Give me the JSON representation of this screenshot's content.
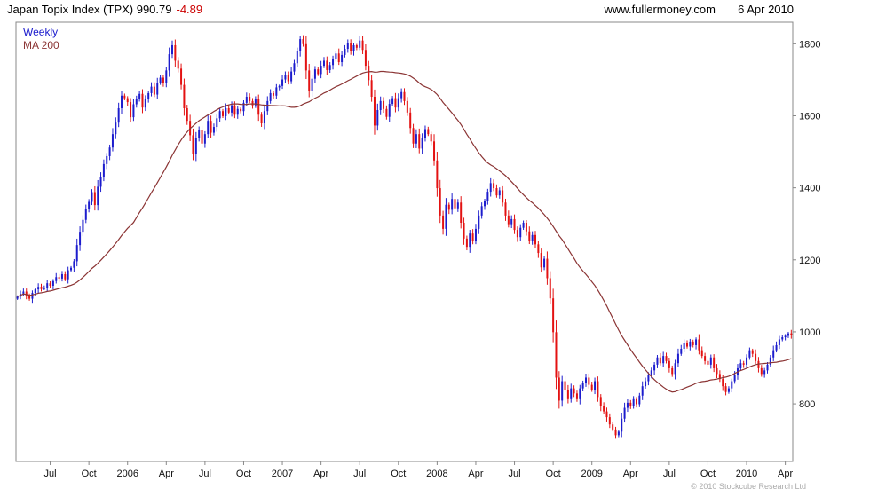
{
  "header": {
    "title": "Japan Topix Index (TPX) 990.79",
    "change": "-4.89",
    "change_color": "#cc0000",
    "website": "www.fullermoney.com",
    "date": "6 Apr 2010"
  },
  "legend": {
    "weekly": "Weekly",
    "ma": "MA 200"
  },
  "footer": {
    "copyright": "© 2010 Stockcube Research Ltd"
  },
  "chart_data": {
    "type": "candlestick",
    "title": "Japan Topix Index (TPX)",
    "interval": "Weekly",
    "overlay": "MA 200",
    "last_close": 990.79,
    "change": -4.89,
    "ylim": [
      640,
      1860
    ],
    "y_ticks": [
      800,
      1000,
      1200,
      1400,
      1600,
      1800
    ],
    "x_ticks": [
      {
        "label": "Jul",
        "index": 11
      },
      {
        "label": "Oct",
        "index": 24
      },
      {
        "label": "2006",
        "index": 37
      },
      {
        "label": "Apr",
        "index": 50
      },
      {
        "label": "Jul",
        "index": 63
      },
      {
        "label": "Oct",
        "index": 76
      },
      {
        "label": "2007",
        "index": 89
      },
      {
        "label": "Apr",
        "index": 102
      },
      {
        "label": "Jul",
        "index": 115
      },
      {
        "label": "Oct",
        "index": 128
      },
      {
        "label": "2008",
        "index": 141
      },
      {
        "label": "Apr",
        "index": 154
      },
      {
        "label": "Jul",
        "index": 167
      },
      {
        "label": "Oct",
        "index": 180
      },
      {
        "label": "2009",
        "index": 193
      },
      {
        "label": "Apr",
        "index": 206
      },
      {
        "label": "Jul",
        "index": 219
      },
      {
        "label": "Oct",
        "index": 232
      },
      {
        "label": "2010",
        "index": 245
      },
      {
        "label": "Apr",
        "index": 258
      }
    ],
    "ma_window": 40,
    "colors": {
      "up": "#1c1ccd",
      "down": "#e31212",
      "ma": "#8b3434",
      "frame": "#888888",
      "text": "#111111"
    },
    "weekly_closes": [
      1098,
      1105,
      1112,
      1100,
      1092,
      1108,
      1118,
      1125,
      1119,
      1122,
      1135,
      1128,
      1141,
      1152,
      1148,
      1160,
      1146,
      1171,
      1178,
      1196,
      1241,
      1278,
      1311,
      1342,
      1361,
      1388,
      1352,
      1403,
      1431,
      1466,
      1488,
      1512,
      1549,
      1581,
      1621,
      1656,
      1649,
      1638,
      1596,
      1632,
      1646,
      1661,
      1623,
      1648,
      1663,
      1681,
      1659,
      1692,
      1706,
      1691,
      1726,
      1771,
      1796,
      1753,
      1731,
      1686,
      1621,
      1586,
      1546,
      1493,
      1539,
      1561,
      1523,
      1549,
      1586,
      1553,
      1569,
      1593,
      1613,
      1599,
      1621,
      1609,
      1629,
      1603,
      1619,
      1613,
      1636,
      1653,
      1641,
      1629,
      1646,
      1603,
      1579,
      1613,
      1641,
      1663,
      1656,
      1679,
      1683,
      1701,
      1713,
      1696,
      1723,
      1746,
      1779,
      1813,
      1799,
      1726,
      1669,
      1703,
      1729,
      1716,
      1739,
      1753,
      1727,
      1741,
      1759,
      1773,
      1749,
      1769,
      1786,
      1803,
      1779,
      1796,
      1789,
      1809,
      1783,
      1739,
      1699,
      1653,
      1573,
      1616,
      1641,
      1619,
      1597,
      1633,
      1649,
      1623,
      1649,
      1666,
      1641,
      1609,
      1566,
      1523,
      1549,
      1509,
      1539,
      1563,
      1549,
      1529,
      1476,
      1399,
      1323,
      1286,
      1353,
      1339,
      1369,
      1343,
      1359,
      1303,
      1259,
      1236,
      1273,
      1253,
      1286,
      1323,
      1349,
      1363,
      1389,
      1413,
      1399,
      1379,
      1393,
      1359,
      1323,
      1299,
      1313,
      1283,
      1263,
      1289,
      1303,
      1279,
      1253,
      1269,
      1243,
      1219,
      1179,
      1203,
      1149,
      1093,
      999,
      873,
      809,
      863,
      839,
      813,
      843,
      829,
      813,
      843,
      859,
      873,
      853,
      839,
      863,
      819,
      793,
      779,
      763,
      743,
      729,
      713,
      723,
      759,
      789,
      803,
      793,
      813,
      799,
      823,
      849,
      863,
      879,
      893,
      909,
      929,
      913,
      933,
      919,
      899,
      883,
      913,
      939,
      953,
      969,
      959,
      973,
      963,
      979,
      949,
      933,
      919,
      909,
      929,
      899,
      883,
      869,
      849,
      833,
      843,
      863,
      879,
      899,
      913,
      909,
      929,
      949,
      939,
      919,
      899,
      883,
      893,
      909,
      929,
      949,
      963,
      979,
      985,
      989,
      995.68,
      990.79
    ]
  }
}
